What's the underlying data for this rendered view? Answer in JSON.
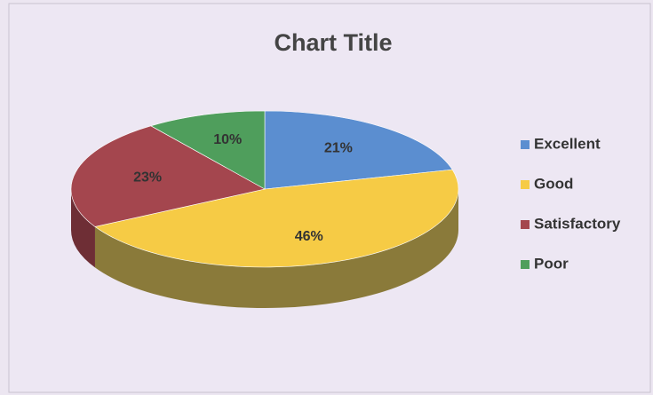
{
  "chart_data": {
    "type": "pie",
    "title": "Chart Title",
    "categories": [
      "Excellent",
      "Good",
      "Satisfactory",
      "Poor"
    ],
    "values": [
      21,
      46,
      23,
      10
    ],
    "value_labels": [
      "21%",
      "46%",
      "23%",
      "10%"
    ],
    "colors": [
      "#5b8ed0",
      "#f6cb45",
      "#a4464e",
      "#4f9e5c"
    ],
    "side_colors": [
      "#3d6396",
      "#8a7a3a",
      "#6e2e35",
      "#356b3e"
    ],
    "legend": "right"
  }
}
